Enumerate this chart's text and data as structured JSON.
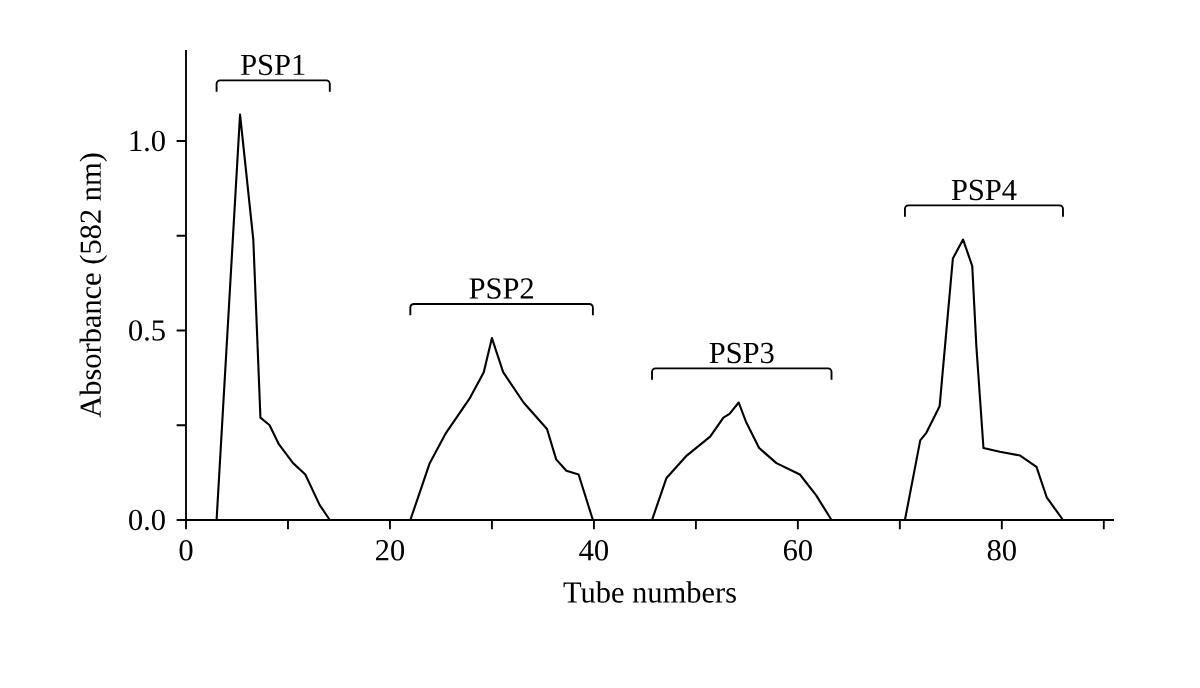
{
  "chart_data": {
    "type": "line",
    "xlabel": "Tube numbers",
    "ylabel": "Absorbance (582 nm)",
    "color": "#000000",
    "marker": "none",
    "line_style": "solid",
    "grid": false,
    "xlim": [
      0,
      91
    ],
    "ylim": [
      0,
      1.24
    ],
    "xticks": [
      0,
      {
        "value": 10,
        "label": null
      },
      20,
      {
        "value": 30,
        "label": null
      },
      40,
      {
        "value": 50,
        "label": null
      },
      60,
      {
        "value": 70,
        "label": null
      },
      80,
      {
        "value": 90,
        "label": null
      }
    ],
    "yticks": [
      {
        "value": 0,
        "label": "0.0"
      },
      {
        "value": 0.25,
        "label": null
      },
      {
        "value": 0.5,
        "label": "0.5"
      },
      {
        "value": 0.75,
        "label": null
      },
      {
        "value": 1.0,
        "label": "1.0"
      }
    ],
    "x": [
      0,
      3,
      5.3,
      6.6,
      7.3,
      8.2,
      9.1,
      10.5,
      11.7,
      13.1,
      14.1,
      22,
      23.9,
      25.5,
      27.8,
      29.2,
      30,
      31.1,
      33.1,
      35.4,
      36.3,
      37.3,
      38.5,
      39.9,
      45.7,
      47.1,
      49.1,
      51.4,
      52.7,
      53.3,
      54.2,
      54.9,
      56.2,
      57.9,
      60.2,
      61.8,
      63.3,
      70.5,
      72,
      72.6,
      73.9,
      74.6,
      75.2,
      76.2,
      77.1,
      77.5,
      78.2,
      79.8,
      81.8,
      83.4,
      84.4,
      86,
      91
    ],
    "values": [
      0,
      0,
      1.07,
      0.74,
      0.27,
      0.25,
      0.2,
      0.15,
      0.12,
      0.04,
      0,
      0,
      0.15,
      0.23,
      0.32,
      0.39,
      0.48,
      0.39,
      0.31,
      0.24,
      0.16,
      0.13,
      0.12,
      0,
      0,
      0.11,
      0.17,
      0.22,
      0.27,
      0.28,
      0.31,
      0.26,
      0.19,
      0.15,
      0.12,
      0.065,
      0,
      0,
      0.21,
      0.23,
      0.3,
      0.51,
      0.69,
      0.74,
      0.67,
      0.46,
      0.19,
      0.18,
      0.17,
      0.14,
      0.06,
      0,
      0
    ],
    "annotations": [
      "PSP1",
      "PSP2",
      "PSP3",
      "PSP4"
    ]
  }
}
